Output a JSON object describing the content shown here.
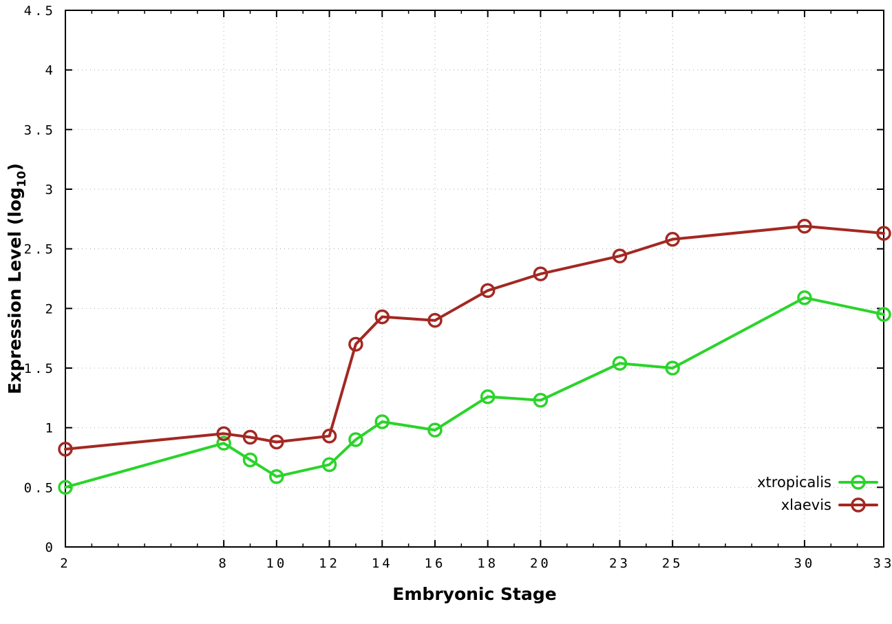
{
  "chart": {
    "xlabel": "Embryonic Stage",
    "ylabel": "Expression Level (log10)",
    "ylabel_main": "Expression Level (log",
    "ylabel_subscript": "10",
    "ylabel_suffix": ")"
  },
  "chart_data": {
    "type": "line",
    "x": [
      2,
      8,
      9,
      10,
      12,
      13,
      14,
      16,
      18,
      20,
      23,
      25,
      30,
      33
    ],
    "series": [
      {
        "name": "xtropicalis",
        "color": "#2ad42a",
        "values": [
          0.5,
          0.87,
          0.73,
          0.59,
          0.69,
          0.9,
          1.05,
          0.98,
          1.26,
          1.23,
          1.54,
          1.5,
          2.09,
          1.95
        ]
      },
      {
        "name": "xlaevis",
        "color": "#a32822",
        "values": [
          0.82,
          0.95,
          0.92,
          0.88,
          0.93,
          1.7,
          1.93,
          1.9,
          2.15,
          2.29,
          2.44,
          2.58,
          2.69,
          2.63
        ]
      }
    ],
    "xticks": [
      2,
      8,
      10,
      12,
      14,
      16,
      18,
      20,
      23,
      25,
      30,
      33
    ],
    "yticks": [
      0,
      0.5,
      1,
      1.5,
      2,
      2.5,
      3,
      3.5,
      4,
      4.5
    ],
    "xlim": [
      2,
      33
    ],
    "ylim": [
      0,
      4.5
    ],
    "grid": true,
    "grid_color": "#a8a8a8",
    "border_color": "#000000",
    "legend_position": "bottom-right-inside",
    "title": "",
    "xlabel": "Embryonic Stage",
    "ylabel": "Expression Level (log10)"
  }
}
